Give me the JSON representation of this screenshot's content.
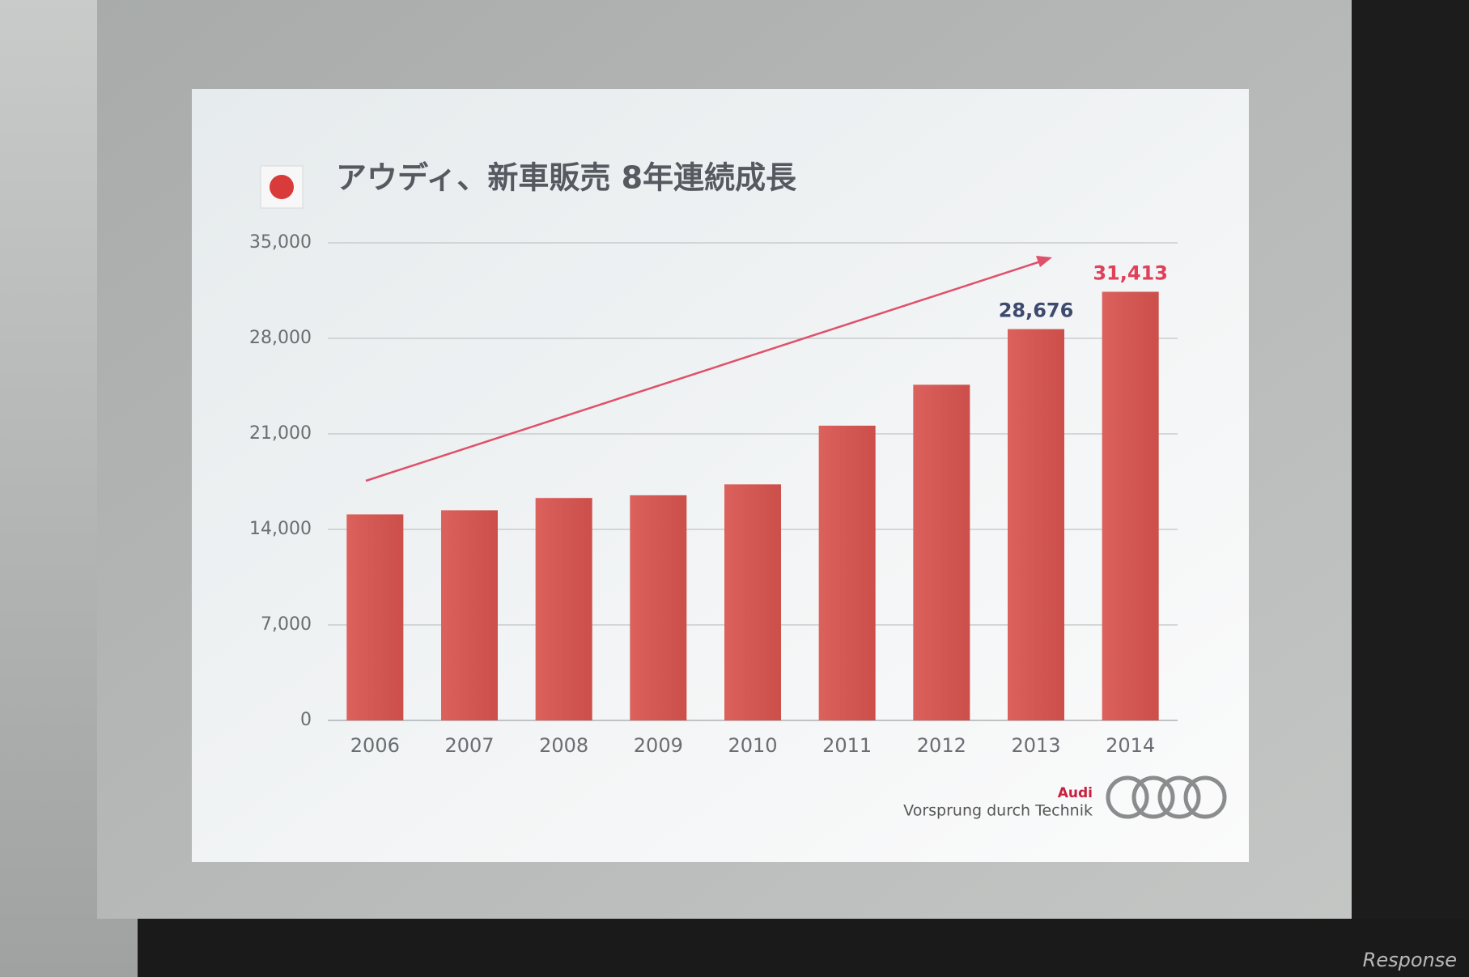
{
  "chart_data": {
    "type": "bar",
    "title": "アウディ、新車販売 8年連続成長",
    "categories": [
      "2006",
      "2007",
      "2008",
      "2009",
      "2010",
      "2011",
      "2012",
      "2013",
      "2014"
    ],
    "values": [
      15100,
      15400,
      16300,
      16500,
      17300,
      21600,
      24600,
      28676,
      31413
    ],
    "value_labels": [
      null,
      null,
      null,
      null,
      null,
      null,
      null,
      "28,676",
      "31,413"
    ],
    "value_label_colors": [
      null,
      null,
      null,
      null,
      null,
      null,
      null,
      "#3d4a6e",
      "#e0405a"
    ],
    "color": "#d9544f",
    "ylim": [
      0,
      35000
    ],
    "yticks": [
      0,
      {
        "value": 7000,
        "label": "7,000"
      },
      {
        "value": 14000,
        "label": "14,000"
      },
      {
        "value": 21000,
        "label": "21,000"
      },
      {
        "value": 28000,
        "label": "28,000"
      },
      {
        "value": 35000,
        "label": "35,000"
      }
    ],
    "grid": true
  },
  "brand": {
    "name": "Audi",
    "slogan": "Vorsprung durch Technik"
  },
  "watermark": "Response"
}
